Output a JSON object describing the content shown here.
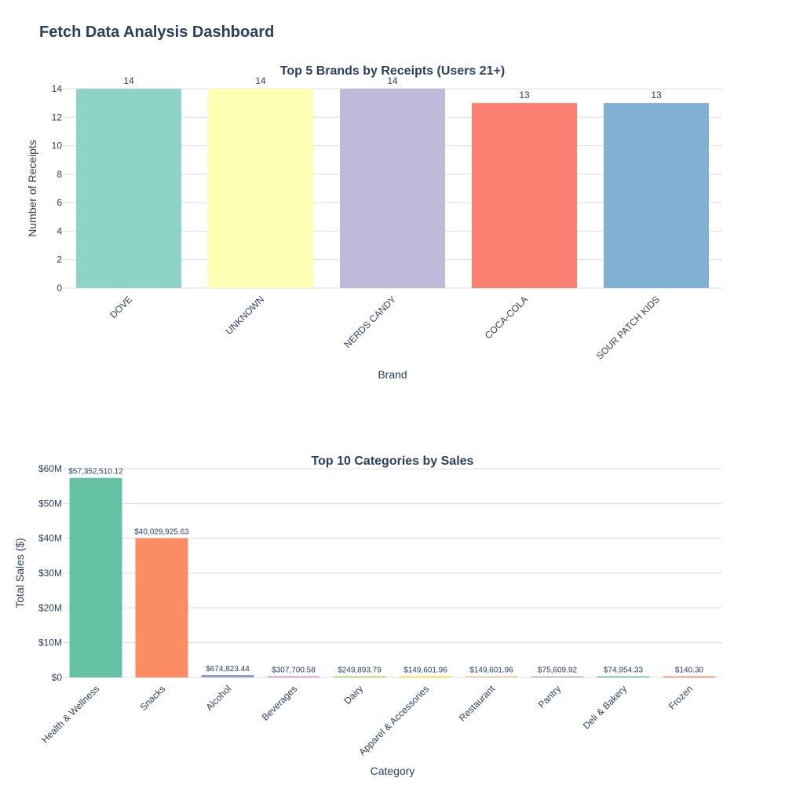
{
  "dashboard": {
    "title": "Fetch Data Analysis Dashboard"
  },
  "chart_data": [
    {
      "type": "bar",
      "title": "Top 5 Brands by Receipts (Users 21+)",
      "xlabel": "Brand",
      "ylabel": "Number of Receipts",
      "categories": [
        "DOVE",
        "UNKNOWN",
        "NERDS CANDY",
        "COCA-COLA",
        "SOUR PATCH KIDS"
      ],
      "values": [
        14,
        14,
        14,
        13,
        13
      ],
      "data_labels": [
        "14",
        "14",
        "14",
        "13",
        "13"
      ],
      "colors": [
        "#8dd3c7",
        "#ffffb3",
        "#bebada",
        "#fb8072",
        "#80b1d3"
      ],
      "ylim": [
        0,
        14
      ],
      "yticks": [
        0,
        2,
        4,
        6,
        8,
        10,
        12,
        14
      ],
      "ytick_labels": [
        "0",
        "2",
        "4",
        "6",
        "8",
        "10",
        "12",
        "14"
      ],
      "grid": true
    },
    {
      "type": "bar",
      "title": "Top 10 Categories by Sales",
      "xlabel": "Category",
      "ylabel": "Total Sales ($)",
      "categories": [
        "Health & Wellness",
        "Snacks",
        "Alcohol",
        "Beverages",
        "Dairy",
        "Apparel & Accessories",
        "Restaurant",
        "Pantry",
        "Deli & Bakery",
        "Frozen"
      ],
      "values": [
        57352510.12,
        40029925.63,
        674823.44,
        307700.58,
        249893.79,
        149601.96,
        149601.96,
        75609.92,
        74954.33,
        140.3
      ],
      "data_labels": [
        "$57,352,510.12",
        "$40,029,925.63",
        "$674,823.44",
        "$307,700.58",
        "$249,893.79",
        "$149,601.96",
        "$149,601.96",
        "$75,609.92",
        "$74,954.33",
        "$140.30"
      ],
      "colors": [
        "#66c2a5",
        "#fc8d62",
        "#8da0cb",
        "#e78ac3",
        "#a6d854",
        "#ffd92f",
        "#e5c494",
        "#b3b3b3",
        "#66c2a5",
        "#fc8d62"
      ],
      "ylim": [
        0,
        60000000
      ],
      "yticks": [
        0,
        10000000,
        20000000,
        30000000,
        40000000,
        50000000,
        60000000
      ],
      "ytick_labels": [
        "$0",
        "$10M",
        "$20M",
        "$30M",
        "$40M",
        "$50M",
        "$60M"
      ],
      "grid": true
    }
  ]
}
